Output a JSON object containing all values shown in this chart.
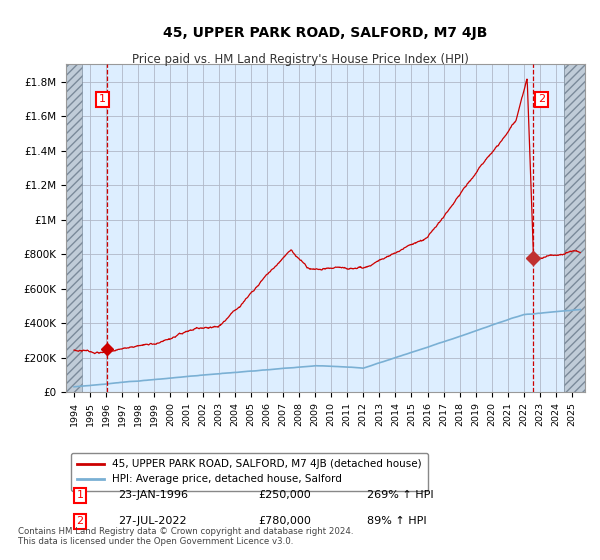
{
  "title": "45, UPPER PARK ROAD, SALFORD, M7 4JB",
  "subtitle": "Price paid vs. HM Land Registry's House Price Index (HPI)",
  "title_fontsize": 10,
  "subtitle_fontsize": 8.5,
  "ylabel_ticks": [
    "£0",
    "£200K",
    "£400K",
    "£600K",
    "£800K",
    "£1M",
    "£1.2M",
    "£1.4M",
    "£1.6M",
    "£1.8M"
  ],
  "ytick_values": [
    0,
    200000,
    400000,
    600000,
    800000,
    1000000,
    1200000,
    1400000,
    1600000,
    1800000
  ],
  "ylim": [
    0,
    1900000
  ],
  "xlim_start": 1993.5,
  "xlim_end": 2025.8,
  "xtick_years": [
    1994,
    1995,
    1996,
    1997,
    1998,
    1999,
    2000,
    2001,
    2002,
    2003,
    2004,
    2005,
    2006,
    2007,
    2008,
    2009,
    2010,
    2011,
    2012,
    2013,
    2014,
    2015,
    2016,
    2017,
    2018,
    2019,
    2020,
    2021,
    2022,
    2023,
    2024,
    2025
  ],
  "plot_bg": "#ddeeff",
  "hatch_color": "#c0ccd8",
  "grid_color": "#b0b8c8",
  "line_red": "#cc0000",
  "line_blue": "#7ab0d4",
  "sale1_year": 1996.07,
  "sale1_price": 250000,
  "sale1_label": "1",
  "sale1_date": "23-JAN-1996",
  "sale1_amount": "£250,000",
  "sale1_hpi": "269% ↑ HPI",
  "sale2_year": 2022.57,
  "sale2_price": 780000,
  "sale2_label": "2",
  "sale2_date": "27-JUL-2022",
  "sale2_amount": "£780,000",
  "sale2_hpi": "89% ↑ HPI",
  "legend_line1": "45, UPPER PARK ROAD, SALFORD, M7 4JB (detached house)",
  "legend_line2": "HPI: Average price, detached house, Salford",
  "footer": "Contains HM Land Registry data © Crown copyright and database right 2024.\nThis data is licensed under the Open Government Licence v3.0."
}
